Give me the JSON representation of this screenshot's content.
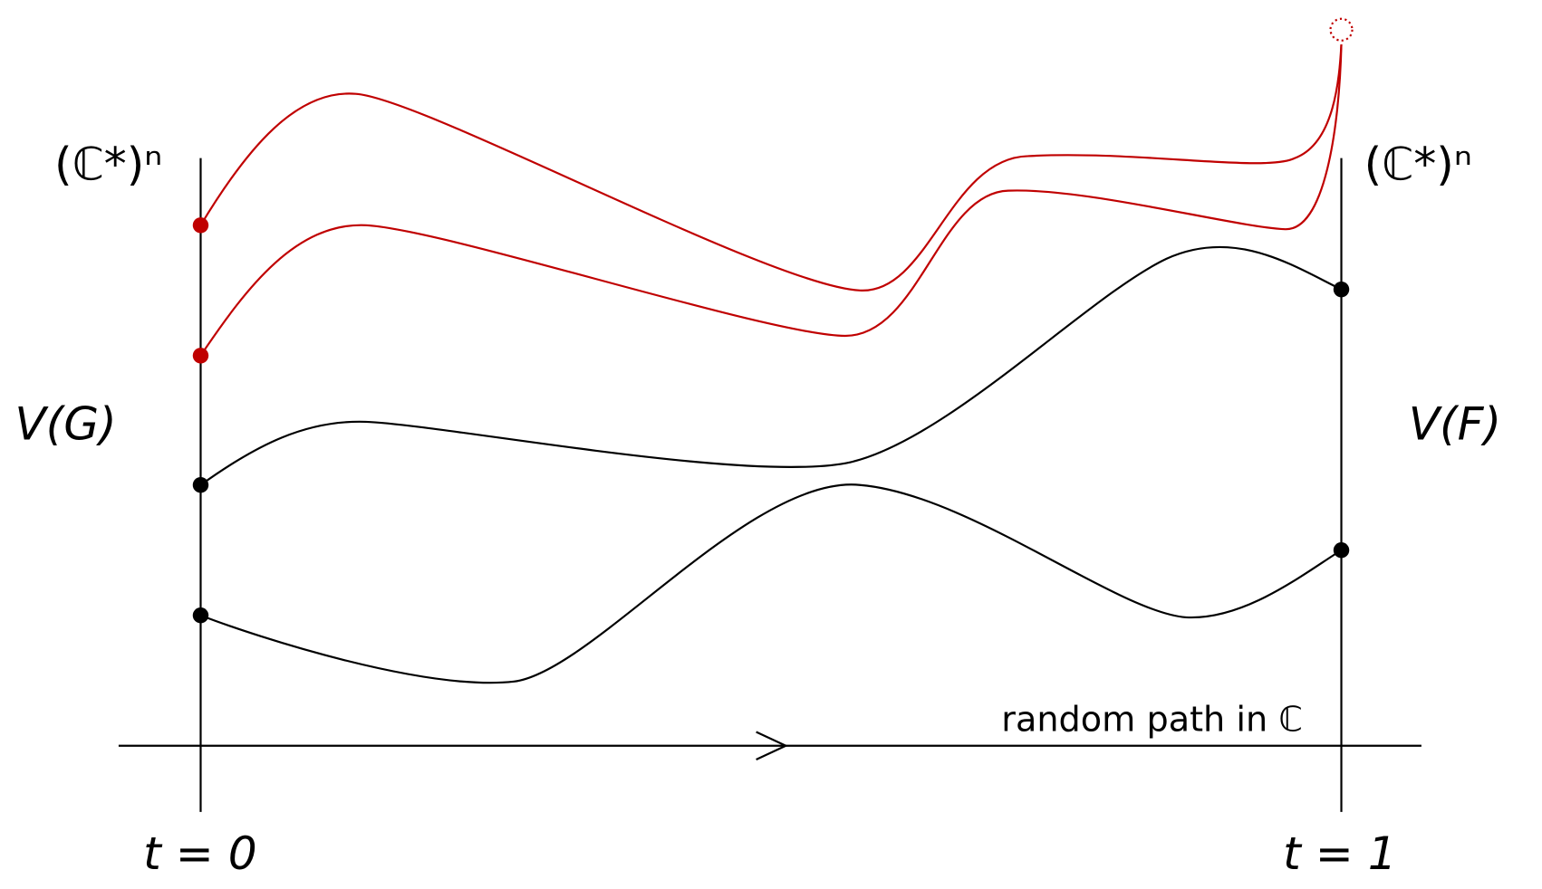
{
  "labels": {
    "left_space": "(ℂ*)ⁿ",
    "right_space": "(ℂ*)ⁿ",
    "left_variety": "V(G)",
    "right_variety": "V(F)",
    "path": "random path in ℂ",
    "start": "t = 0",
    "end": "t = 1"
  }
}
